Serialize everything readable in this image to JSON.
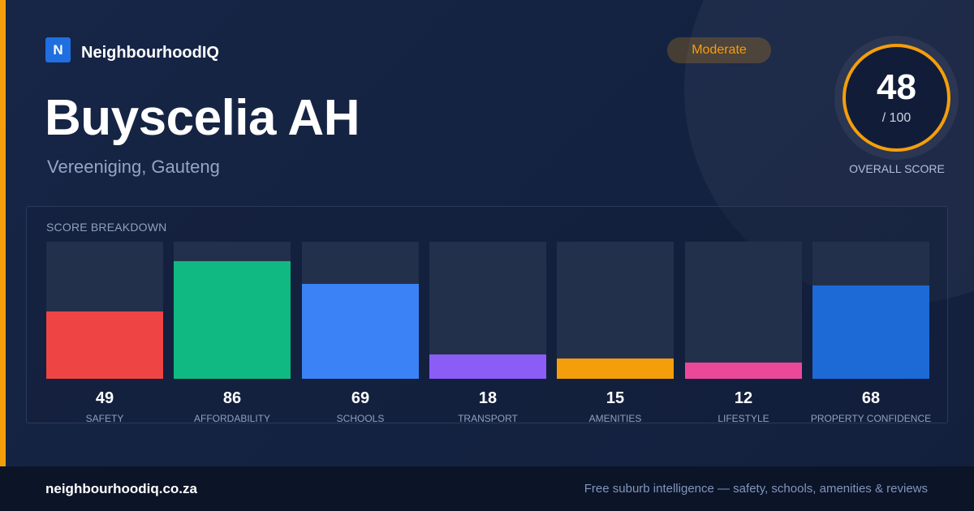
{
  "brand": {
    "logo_letter": "N",
    "name": "NeighbourhoodIQ"
  },
  "suburb": {
    "name": "Buyscelia AH",
    "location": "Vereeniging, Gauteng"
  },
  "rating_badge": {
    "label": "Moderate",
    "color": "#f59e0b"
  },
  "overall": {
    "score": "48",
    "max_text": "/ 100",
    "label": "OVERALL SCORE"
  },
  "breakdown": {
    "title": "SCORE BREAKDOWN",
    "items": [
      {
        "label": "SAFETY",
        "value": 49,
        "color": "#ef4444"
      },
      {
        "label": "AFFORDABILITY",
        "value": 86,
        "color": "#10b981"
      },
      {
        "label": "SCHOOLS",
        "value": 69,
        "color": "#3b82f6"
      },
      {
        "label": "TRANSPORT",
        "value": 18,
        "color": "#8b5cf6"
      },
      {
        "label": "AMENITIES",
        "value": 15,
        "color": "#f59e0b"
      },
      {
        "label": "LIFESTYLE",
        "value": 12,
        "color": "#ec4899"
      },
      {
        "label": "PROPERTY CONFIDENCE",
        "value": 68,
        "color": "#1d6ad6"
      }
    ]
  },
  "footer": {
    "domain": "neighbourhoodiq.co.za",
    "tagline": "Free suburb intelligence — safety, schools, amenities & reviews"
  }
}
